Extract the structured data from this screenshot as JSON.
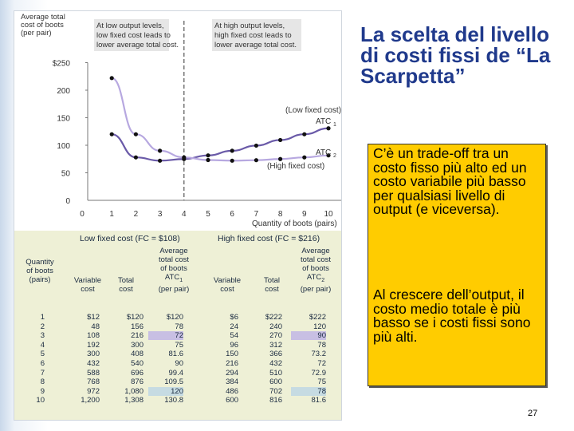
{
  "slide": {
    "title": "La scelta del livello di costi fissi de “La Scarpetta”",
    "bullets": [
      "C’è un trade-off tra un costo fisso più alto ed un costo variabile più basso per qualsiasi livello di output (e viceversa).",
      "Al crescere dell’output, il costo medio totale è più basso se i costi fissi sono più alti."
    ],
    "page_number": "27"
  },
  "chart_data": {
    "type": "line",
    "ylabel": [
      "Average total",
      "cost of boots",
      "(per pair)"
    ],
    "xlabel": "Quantity of boots (pairs)",
    "ylim": [
      0,
      250
    ],
    "xlim": [
      0,
      10
    ],
    "y_ticks": [
      "$250",
      "200",
      "150",
      "100",
      "50",
      "0"
    ],
    "y_tick_values": [
      250,
      200,
      150,
      100,
      50,
      0
    ],
    "x_ticks": [
      "1",
      "2",
      "3",
      "4",
      "5",
      "6",
      "7",
      "8",
      "9",
      "10"
    ],
    "annotations": [
      [
        "At low output levels,",
        "low fixed cost leads to",
        "lower average total cost."
      ],
      [
        "At high output levels,",
        "high fixed cost leads to",
        "lower average total cost."
      ]
    ],
    "series": [
      {
        "name": "ATC",
        "sub": "1",
        "label": "(Low fixed cost)",
        "color": "#6a5aa8",
        "x": [
          1,
          2,
          3,
          4,
          5,
          6,
          7,
          8,
          9,
          10
        ],
        "values": [
          120,
          78,
          72,
          75,
          81.6,
          90,
          99.4,
          109.5,
          120,
          130.8
        ]
      },
      {
        "name": "ATC",
        "sub": "2",
        "label": "(High fixed cost)",
        "color": "#b7a8e0",
        "x": [
          1,
          2,
          3,
          4,
          5,
          6,
          7,
          8,
          9,
          10
        ],
        "values": [
          222,
          120,
          90,
          78,
          73.2,
          72,
          72.9,
          75,
          78,
          81.6
        ]
      }
    ],
    "grid": false
  },
  "table": {
    "group_headers": [
      "Low fixed cost (FC = $108)",
      "High fixed cost (FC = $216)"
    ],
    "columns": [
      [
        "Quantity",
        "of boots",
        "(pairs)"
      ],
      [
        "Variable",
        "cost"
      ],
      [
        "Total",
        "cost"
      ],
      [
        "Average",
        "total cost",
        "of boots",
        "ATC",
        "(per pair)"
      ],
      [
        "Variable",
        "cost"
      ],
      [
        "Total",
        "cost"
      ],
      [
        "Average",
        "total cost",
        "of boots",
        "ATC",
        "(per pair)"
      ]
    ],
    "atc_subscripts": [
      "1",
      "2"
    ],
    "rows": [
      [
        "1",
        "$12",
        "$120",
        "$120",
        "$6",
        "$222",
        "$222"
      ],
      [
        "2",
        "48",
        "156",
        "78",
        "24",
        "240",
        "120"
      ],
      [
        "3",
        "108",
        "216",
        "72",
        "54",
        "270",
        "90"
      ],
      [
        "4",
        "192",
        "300",
        "75",
        "96",
        "312",
        "78"
      ],
      [
        "5",
        "300",
        "408",
        "81.6",
        "150",
        "366",
        "73.2"
      ],
      [
        "6",
        "432",
        "540",
        "90",
        "216",
        "432",
        "72"
      ],
      [
        "7",
        "588",
        "696",
        "99.4",
        "294",
        "510",
        "72.9"
      ],
      [
        "8",
        "768",
        "876",
        "109.5",
        "384",
        "600",
        "75"
      ],
      [
        "9",
        "972",
        "1,080",
        "120",
        "486",
        "702",
        "78"
      ],
      [
        "10",
        "1,200",
        "1,308",
        "130.8",
        "600",
        "816",
        "81.6"
      ]
    ]
  }
}
